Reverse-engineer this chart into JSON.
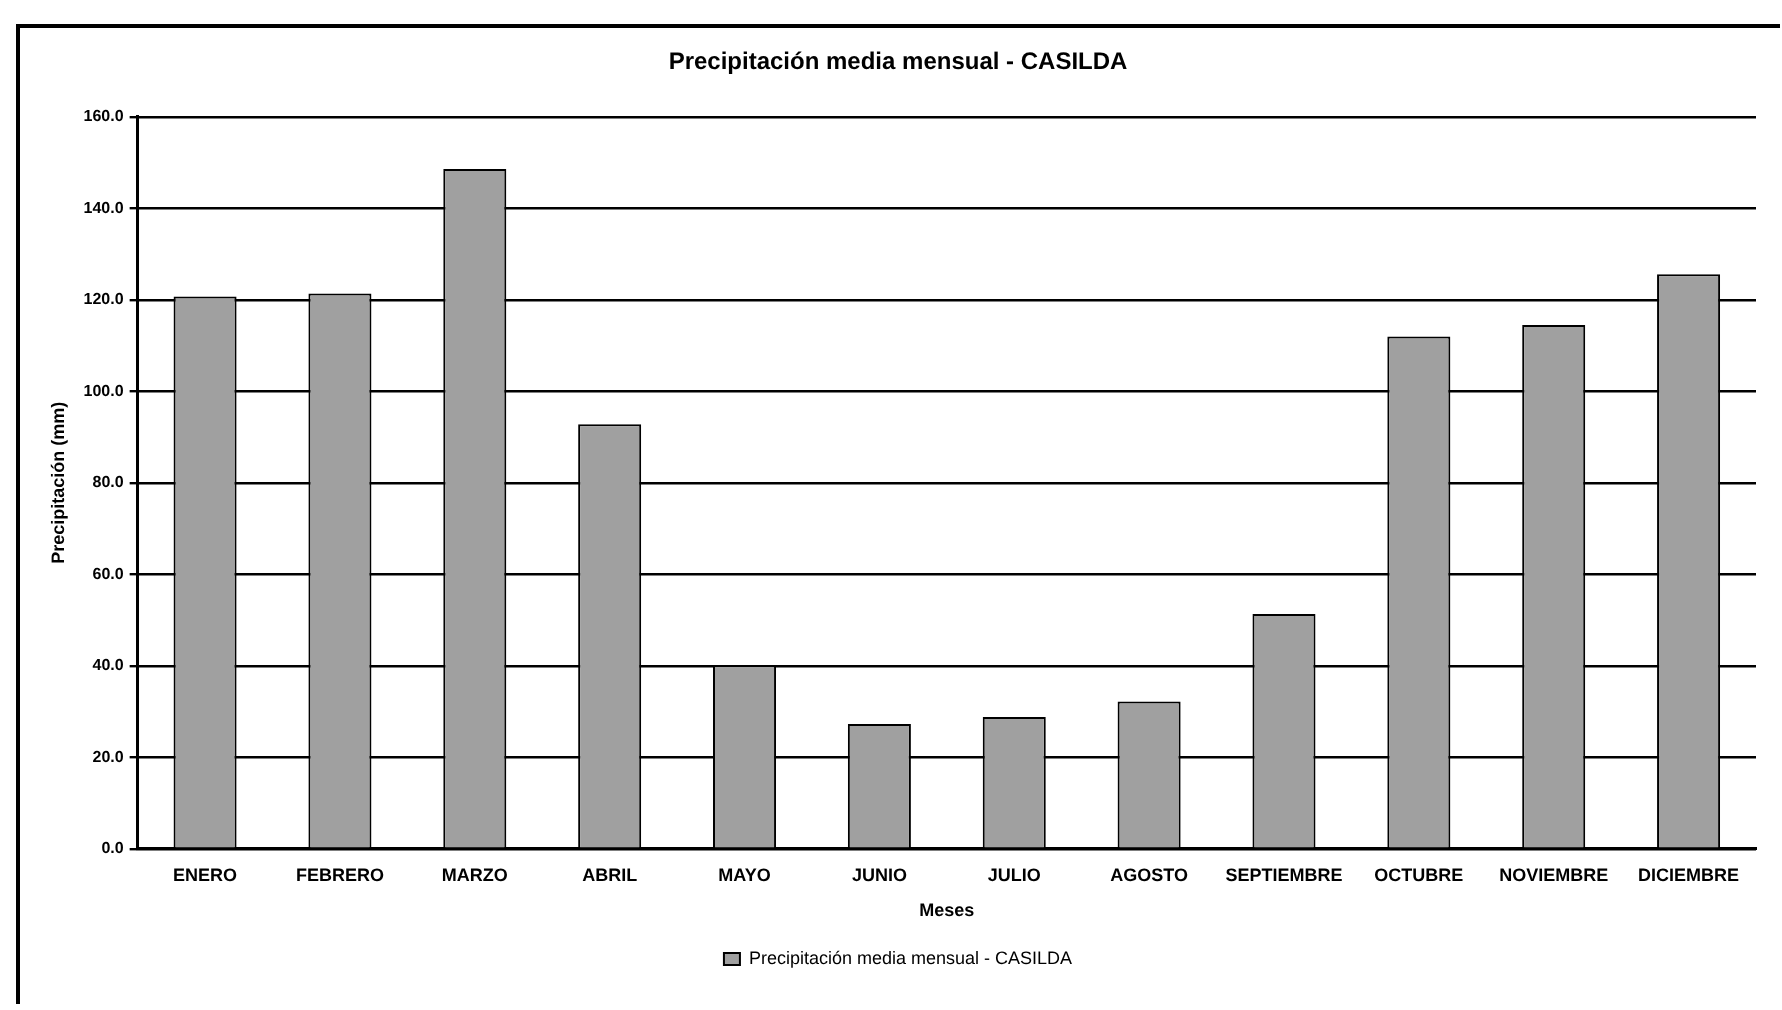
{
  "chart_data": {
    "type": "bar",
    "title": "Precipitación media mensual - CASILDA",
    "xlabel": "Meses",
    "ylabel": "Precipitación (mm)",
    "categories": [
      "ENERO",
      "FEBRERO",
      "MARZO",
      "ABRIL",
      "MAYO",
      "JUNIO",
      "JULIO",
      "AGOSTO",
      "SEPTIEMBRE",
      "OCTUBRE",
      "NOVIEMBRE",
      "DICIEMBRE"
    ],
    "series": [
      {
        "name": "Precipitación media mensual - CASILDA",
        "color": "#a0a0a0",
        "values": [
          120.7,
          121.4,
          148.6,
          92.8,
          40.2,
          27.3,
          28.8,
          32.2,
          51.3,
          112,
          114.5,
          125.6
        ]
      }
    ],
    "ylim": [
      0,
      160
    ],
    "yticks": [
      {
        "value": 0,
        "label": "0.0"
      },
      {
        "value": 20,
        "label": "20.0"
      },
      {
        "value": 40,
        "label": "40.0"
      },
      {
        "value": 60,
        "label": "60.0"
      },
      {
        "value": 80,
        "label": "80.0"
      },
      {
        "value": 100,
        "label": "100.0"
      },
      {
        "value": 120,
        "label": "120.0"
      },
      {
        "value": 140,
        "label": "140.0"
      },
      {
        "value": 160,
        "label": "160.0"
      }
    ],
    "grid": "y",
    "legend": "bottom"
  }
}
